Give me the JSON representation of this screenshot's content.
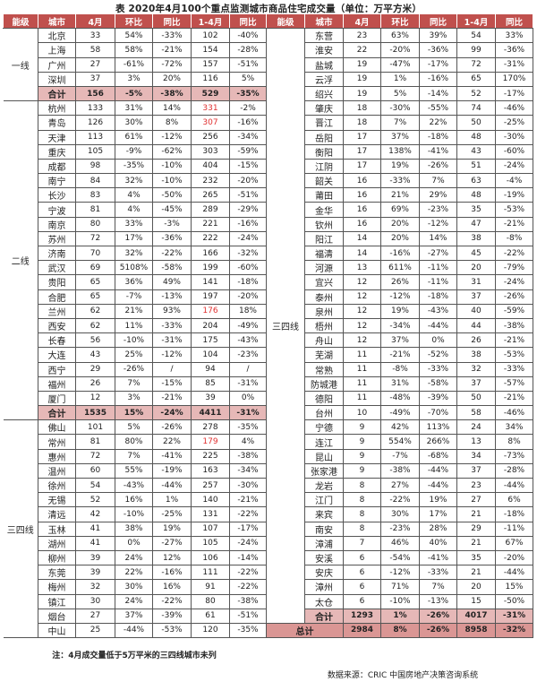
{
  "title": "表 2020年4月100个重点监测城市商品住宅成交量（单位：万平方米）",
  "headers": [
    "能级",
    "城市",
    "4月",
    "环比",
    "同比",
    "1-4月",
    "同比"
  ],
  "colors": {
    "header_bg": "#c0504d",
    "total_bg": "#e6b8b7",
    "grand_total_bg": "#da9694",
    "highlight_text": "#e03030"
  },
  "highlight_yoy_cities": [
    "杭州",
    "青岛",
    "兰州",
    "常州"
  ],
  "left": [
    {
      "tier": "一线",
      "rows": [
        [
          "北京",
          "33",
          "54%",
          "-33%",
          "102",
          "-40%"
        ],
        [
          "上海",
          "58",
          "58%",
          "-21%",
          "154",
          "-28%"
        ],
        [
          "广州",
          "27",
          "-61%",
          "-72%",
          "157",
          "-51%"
        ],
        [
          "深圳",
          "37",
          "3%",
          "20%",
          "116",
          "5%"
        ]
      ],
      "total": [
        "合计",
        "156",
        "-5%",
        "-38%",
        "529",
        "-35%"
      ]
    },
    {
      "tier": "二线",
      "rows": [
        [
          "杭州",
          "133",
          "31%",
          "14%",
          "331",
          "-2%"
        ],
        [
          "青岛",
          "126",
          "30%",
          "8%",
          "307",
          "-16%"
        ],
        [
          "天津",
          "113",
          "61%",
          "-12%",
          "256",
          "-34%"
        ],
        [
          "重庆",
          "105",
          "-9%",
          "-62%",
          "303",
          "-59%"
        ],
        [
          "成都",
          "98",
          "-35%",
          "-10%",
          "404",
          "-15%"
        ],
        [
          "南宁",
          "84",
          "32%",
          "-10%",
          "232",
          "-20%"
        ],
        [
          "长沙",
          "83",
          "4%",
          "-50%",
          "265",
          "-51%"
        ],
        [
          "宁波",
          "81",
          "4%",
          "-45%",
          "289",
          "-29%"
        ],
        [
          "南京",
          "80",
          "33%",
          "-3%",
          "221",
          "-16%"
        ],
        [
          "苏州",
          "72",
          "17%",
          "-36%",
          "222",
          "-24%"
        ],
        [
          "济南",
          "70",
          "32%",
          "-22%",
          "166",
          "-32%"
        ],
        [
          "武汉",
          "69",
          "5108%",
          "-58%",
          "199",
          "-60%"
        ],
        [
          "贵阳",
          "65",
          "36%",
          "49%",
          "141",
          "-18%"
        ],
        [
          "合肥",
          "65",
          "-7%",
          "-13%",
          "197",
          "-20%"
        ],
        [
          "兰州",
          "62",
          "21%",
          "93%",
          "176",
          "18%"
        ],
        [
          "西安",
          "62",
          "11%",
          "-33%",
          "204",
          "-49%"
        ],
        [
          "长春",
          "56",
          "-10%",
          "-31%",
          "175",
          "-43%"
        ],
        [
          "大连",
          "43",
          "25%",
          "-12%",
          "104",
          "-23%"
        ],
        [
          "西宁",
          "29",
          "-26%",
          "/",
          "94",
          "/"
        ],
        [
          "福州",
          "26",
          "7%",
          "-15%",
          "85",
          "-31%"
        ],
        [
          "厦门",
          "12",
          "3%",
          "-21%",
          "39",
          "0%"
        ]
      ],
      "total": [
        "合计",
        "1535",
        "15%",
        "-24%",
        "4411",
        "-31%"
      ]
    },
    {
      "tier": "三四线",
      "rows": [
        [
          "佛山",
          "101",
          "5%",
          "-26%",
          "278",
          "-35%"
        ],
        [
          "常州",
          "81",
          "80%",
          "22%",
          "179",
          "4%"
        ],
        [
          "惠州",
          "72",
          "7%",
          "-41%",
          "225",
          "-38%"
        ],
        [
          "温州",
          "60",
          "55%",
          "-19%",
          "163",
          "-34%"
        ],
        [
          "徐州",
          "54",
          "-43%",
          "-44%",
          "257",
          "-30%"
        ],
        [
          "无锡",
          "52",
          "16%",
          "1%",
          "140",
          "-21%"
        ],
        [
          "清远",
          "42",
          "-10%",
          "-25%",
          "131",
          "-22%"
        ],
        [
          "玉林",
          "41",
          "38%",
          "19%",
          "107",
          "-17%"
        ],
        [
          "湖州",
          "41",
          "0%",
          "-27%",
          "105",
          "-24%"
        ],
        [
          "柳州",
          "39",
          "24%",
          "12%",
          "106",
          "-14%"
        ],
        [
          "东莞",
          "39",
          "22%",
          "-16%",
          "111",
          "-22%"
        ],
        [
          "梅州",
          "32",
          "30%",
          "16%",
          "91",
          "-22%"
        ],
        [
          "镇江",
          "30",
          "24%",
          "-22%",
          "80",
          "-38%"
        ],
        [
          "烟台",
          "27",
          "37%",
          "-39%",
          "61",
          "-51%"
        ],
        [
          "中山",
          "25",
          "-44%",
          "-53%",
          "120",
          "-35%"
        ]
      ]
    }
  ],
  "right": {
    "tier": "三四线",
    "rows": [
      [
        "东营",
        "23",
        "63%",
        "39%",
        "54",
        "33%"
      ],
      [
        "淮安",
        "22",
        "-20%",
        "-36%",
        "99",
        "-36%"
      ],
      [
        "盐城",
        "19",
        "-47%",
        "-17%",
        "72",
        "-31%"
      ],
      [
        "云浮",
        "19",
        "1%",
        "-16%",
        "65",
        "170%"
      ],
      [
        "绍兴",
        "19",
        "5%",
        "-14%",
        "52",
        "-17%"
      ],
      [
        "肇庆",
        "18",
        "-30%",
        "-55%",
        "74",
        "-46%"
      ],
      [
        "晋江",
        "18",
        "7%",
        "22%",
        "50",
        "-25%"
      ],
      [
        "岳阳",
        "17",
        "37%",
        "-18%",
        "48",
        "-30%"
      ],
      [
        "衡阳",
        "17",
        "138%",
        "-41%",
        "43",
        "-60%"
      ],
      [
        "江阴",
        "17",
        "19%",
        "-26%",
        "51",
        "-24%"
      ],
      [
        "韶关",
        "16",
        "-33%",
        "7%",
        "63",
        "-4%"
      ],
      [
        "莆田",
        "16",
        "21%",
        "29%",
        "48",
        "-19%"
      ],
      [
        "金华",
        "16",
        "69%",
        "-23%",
        "35",
        "-53%"
      ],
      [
        "钦州",
        "16",
        "20%",
        "-12%",
        "47",
        "-21%"
      ],
      [
        "阳江",
        "14",
        "20%",
        "14%",
        "38",
        "-8%"
      ],
      [
        "福清",
        "14",
        "-16%",
        "-27%",
        "45",
        "-22%"
      ],
      [
        "河源",
        "13",
        "611%",
        "-11%",
        "20",
        "-79%"
      ],
      [
        "宜兴",
        "12",
        "26%",
        "-11%",
        "31",
        "-24%"
      ],
      [
        "泰州",
        "12",
        "-12%",
        "-18%",
        "37",
        "-26%"
      ],
      [
        "泉州",
        "12",
        "19%",
        "-43%",
        "40",
        "-59%"
      ],
      [
        "梧州",
        "12",
        "-34%",
        "-44%",
        "44",
        "-38%"
      ],
      [
        "舟山",
        "12",
        "37%",
        "0%",
        "26",
        "-21%"
      ],
      [
        "芜湖",
        "11",
        "-21%",
        "-52%",
        "38",
        "-53%"
      ],
      [
        "常熟",
        "11",
        "-8%",
        "-33%",
        "32",
        "-33%"
      ],
      [
        "防城港",
        "11",
        "31%",
        "-58%",
        "37",
        "-57%"
      ],
      [
        "德阳",
        "11",
        "-48%",
        "-39%",
        "50",
        "-21%"
      ],
      [
        "台州",
        "10",
        "-49%",
        "-70%",
        "58",
        "-46%"
      ],
      [
        "宁德",
        "9",
        "42%",
        "113%",
        "24",
        "34%"
      ],
      [
        "连江",
        "9",
        "554%",
        "266%",
        "13",
        "8%"
      ],
      [
        "昆山",
        "9",
        "-7%",
        "-68%",
        "34",
        "-73%"
      ],
      [
        "张家港",
        "9",
        "-38%",
        "-44%",
        "37",
        "-28%"
      ],
      [
        "龙岩",
        "8",
        "27%",
        "-44%",
        "23",
        "-44%"
      ],
      [
        "江门",
        "8",
        "-22%",
        "19%",
        "27",
        "6%"
      ],
      [
        "来宾",
        "8",
        "30%",
        "17%",
        "21",
        "-18%"
      ],
      [
        "南安",
        "8",
        "-23%",
        "28%",
        "29",
        "-11%"
      ],
      [
        "漳浦",
        "7",
        "46%",
        "40%",
        "21",
        "67%"
      ],
      [
        "安溪",
        "6",
        "-54%",
        "-41%",
        "35",
        "-20%"
      ],
      [
        "安庆",
        "6",
        "-12%",
        "-33%",
        "21",
        "-44%"
      ],
      [
        "漳州",
        "6",
        "71%",
        "7%",
        "20",
        "15%"
      ],
      [
        "太仓",
        "6",
        "-10%",
        "-13%",
        "15",
        "-50%"
      ]
    ],
    "total": [
      "合计",
      "1293",
      "1%",
      "-26%",
      "4017",
      "-31%"
    ],
    "grand_total": [
      "总计",
      "2984",
      "8%",
      "-26%",
      "8958",
      "-32%"
    ]
  },
  "note": "注：4月成交量低于5万平米的三四线城市未列",
  "source": "数据来源：CRIC 中国房地产决策咨询系统"
}
